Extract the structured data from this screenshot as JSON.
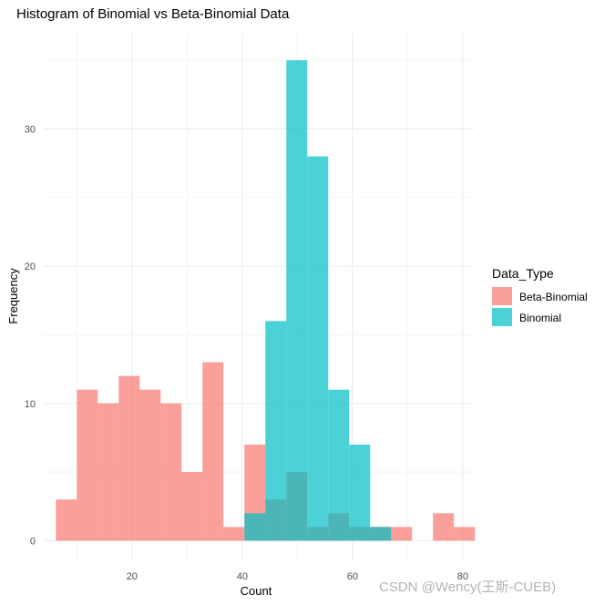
{
  "watermark": "CSDN @Wency(王斯-CUEB)",
  "chart_data": {
    "type": "bar",
    "subtype": "histogram",
    "title": "Histogram of Binomial vs Beta-Binomial Data",
    "xlabel": "Count",
    "ylabel": "Frequency",
    "xlim": [
      4,
      82
    ],
    "ylim": [
      -1.5,
      37
    ],
    "x_ticks": [
      20,
      40,
      60,
      80
    ],
    "y_ticks": [
      0,
      10,
      20,
      30
    ],
    "grid": true,
    "legend_title": "Data_Type",
    "legend_position": "right",
    "series": [
      {
        "name": "Beta-Binomial",
        "color": "#F8766D",
        "opacity": 0.7,
        "bins": [
          {
            "x0": 6.2,
            "x1": 10.0,
            "count": 3
          },
          {
            "x0": 10.0,
            "x1": 13.8,
            "count": 11
          },
          {
            "x0": 13.8,
            "x1": 17.6,
            "count": 10
          },
          {
            "x0": 17.6,
            "x1": 21.4,
            "count": 12
          },
          {
            "x0": 21.4,
            "x1": 25.2,
            "count": 11
          },
          {
            "x0": 25.2,
            "x1": 29.0,
            "count": 10
          },
          {
            "x0": 29.0,
            "x1": 32.8,
            "count": 5
          },
          {
            "x0": 32.8,
            "x1": 36.6,
            "count": 13
          },
          {
            "x0": 36.6,
            "x1": 40.4,
            "count": 1
          },
          {
            "x0": 40.4,
            "x1": 44.2,
            "count": 7
          },
          {
            "x0": 44.2,
            "x1": 48.0,
            "count": 3
          },
          {
            "x0": 48.0,
            "x1": 51.8,
            "count": 5
          },
          {
            "x0": 51.8,
            "x1": 55.6,
            "count": 1
          },
          {
            "x0": 55.6,
            "x1": 59.4,
            "count": 2
          },
          {
            "x0": 59.4,
            "x1": 63.2,
            "count": 1
          },
          {
            "x0": 63.2,
            "x1": 67.0,
            "count": 1
          },
          {
            "x0": 67.0,
            "x1": 70.8,
            "count": 1
          },
          {
            "x0": 70.8,
            "x1": 74.6,
            "count": 0
          },
          {
            "x0": 74.6,
            "x1": 78.4,
            "count": 2
          },
          {
            "x0": 78.4,
            "x1": 82.2,
            "count": 1
          }
        ]
      },
      {
        "name": "Binomial",
        "color": "#00BFC4",
        "opacity": 0.7,
        "bins": [
          {
            "x0": 40.4,
            "x1": 44.2,
            "count": 2
          },
          {
            "x0": 44.2,
            "x1": 48.0,
            "count": 16
          },
          {
            "x0": 48.0,
            "x1": 51.8,
            "count": 35
          },
          {
            "x0": 51.8,
            "x1": 55.6,
            "count": 28
          },
          {
            "x0": 55.6,
            "x1": 59.4,
            "count": 11
          },
          {
            "x0": 59.4,
            "x1": 63.2,
            "count": 7
          },
          {
            "x0": 63.2,
            "x1": 67.0,
            "count": 1
          }
        ]
      }
    ]
  }
}
